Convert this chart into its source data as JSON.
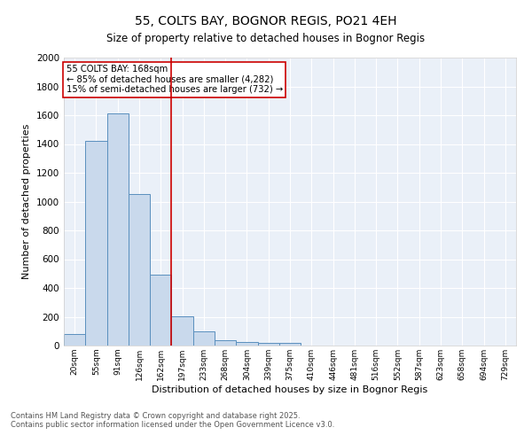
{
  "title1": "55, COLTS BAY, BOGNOR REGIS, PO21 4EH",
  "title2": "Size of property relative to detached houses in Bognor Regis",
  "xlabel": "Distribution of detached houses by size in Bognor Regis",
  "ylabel": "Number of detached properties",
  "categories": [
    "20sqm",
    "55sqm",
    "91sqm",
    "126sqm",
    "162sqm",
    "197sqm",
    "233sqm",
    "268sqm",
    "304sqm",
    "339sqm",
    "375sqm",
    "410sqm",
    "446sqm",
    "481sqm",
    "516sqm",
    "552sqm",
    "587sqm",
    "623sqm",
    "658sqm",
    "694sqm",
    "729sqm"
  ],
  "values": [
    80,
    1420,
    1610,
    1055,
    495,
    205,
    100,
    38,
    27,
    20,
    20,
    0,
    0,
    0,
    0,
    0,
    0,
    0,
    0,
    0,
    0
  ],
  "bar_color": "#c9d9ec",
  "bar_edge_color": "#5a8fbe",
  "vline_x": 4.5,
  "vline_color": "#cc0000",
  "annotation_text": "55 COLTS BAY: 168sqm\n← 85% of detached houses are smaller (4,282)\n15% of semi-detached houses are larger (732) →",
  "ylim": [
    0,
    2000
  ],
  "yticks": [
    0,
    200,
    400,
    600,
    800,
    1000,
    1200,
    1400,
    1600,
    1800,
    2000
  ],
  "background_color": "#eaf0f8",
  "grid_color": "#ffffff",
  "footnote1": "Contains HM Land Registry data © Crown copyright and database right 2025.",
  "footnote2": "Contains public sector information licensed under the Open Government Licence v3.0."
}
